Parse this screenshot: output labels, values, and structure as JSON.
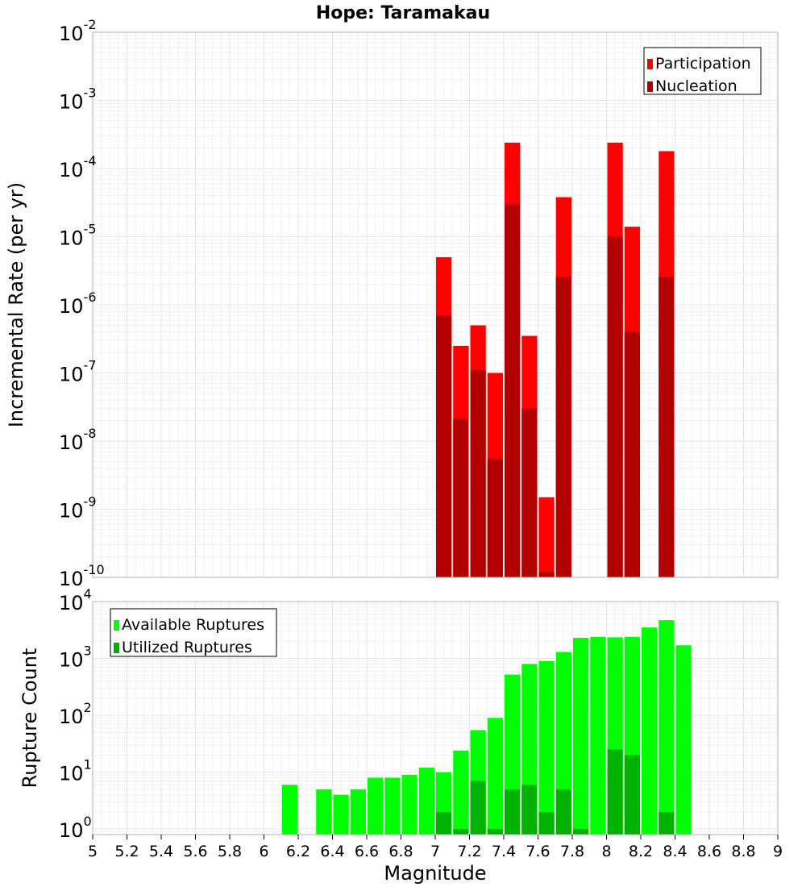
{
  "chart_data": [
    {
      "type": "bar",
      "title": "Hope: Taramakau",
      "xlabel": "",
      "ylabel": "Incremental Rate (per yr)",
      "yscale": "log",
      "ylim": [
        1e-10,
        0.01
      ],
      "xlim": [
        5,
        9
      ],
      "bin_width": 0.1,
      "grid": true,
      "legend_position": "top-right",
      "y_tick_exponents": [
        "-10",
        "-9",
        "-8",
        "-7",
        "-6",
        "-5",
        "-4",
        "-3",
        "-2"
      ],
      "colors": {
        "Participation": "#ff0000",
        "Nucleation": "#b20000"
      },
      "series": [
        {
          "name": "Participation",
          "x": [
            7.05,
            7.15,
            7.25,
            7.35,
            7.45,
            7.55,
            7.65,
            7.75,
            8.05,
            8.15,
            8.35
          ],
          "values": [
            5e-06,
            2.5e-07,
            5e-07,
            1e-07,
            0.00024,
            3.5e-07,
            1.5e-09,
            3.8e-05,
            0.00024,
            1.4e-05,
            0.00018
          ]
        },
        {
          "name": "Nucleation",
          "x": [
            7.05,
            7.15,
            7.25,
            7.35,
            7.45,
            7.55,
            7.65,
            7.75,
            8.05,
            8.15,
            8.35
          ],
          "values": [
            7e-07,
            2.1e-08,
            1.1e-07,
            5.5e-09,
            3e-05,
            3e-08,
            1.2e-10,
            2.6e-06,
            1e-05,
            4e-07,
            2.6e-06
          ]
        }
      ]
    },
    {
      "type": "bar",
      "title": "",
      "xlabel": "Magnitude",
      "ylabel": "Rupture Count",
      "yscale": "log",
      "ylim": [
        0.8,
        10000
      ],
      "xlim": [
        5,
        9
      ],
      "bin_width": 0.1,
      "grid": true,
      "legend_position": "top-left",
      "y_tick_exponents": [
        "0",
        "1",
        "2",
        "3",
        "4"
      ],
      "x_ticks": [
        "5",
        "5.2",
        "5.4",
        "5.6",
        "5.8",
        "6",
        "6.2",
        "6.4",
        "6.6",
        "6.8",
        "7",
        "7.2",
        "7.4",
        "7.6",
        "7.8",
        "8",
        "8.2",
        "8.4",
        "8.6",
        "8.8",
        "9"
      ],
      "colors": {
        "Available Ruptures": "#00ff00",
        "Utilized Ruptures": "#00b200"
      },
      "series": [
        {
          "name": "Available Ruptures",
          "x": [
            6.15,
            6.35,
            6.45,
            6.55,
            6.65,
            6.75,
            6.85,
            6.95,
            7.05,
            7.15,
            7.25,
            7.35,
            7.45,
            7.55,
            7.65,
            7.75,
            7.85,
            7.95,
            8.05,
            8.15,
            8.25,
            8.35,
            8.45
          ],
          "values": [
            6,
            5,
            4,
            5,
            8,
            8,
            9,
            12,
            10,
            24,
            55,
            90,
            520,
            800,
            900,
            1300,
            2300,
            2400,
            2350,
            2400,
            3500,
            4700,
            1700
          ]
        },
        {
          "name": "Utilized Ruptures",
          "x": [
            7.05,
            7.15,
            7.25,
            7.35,
            7.45,
            7.55,
            7.65,
            7.75,
            7.85,
            8.05,
            8.15,
            8.35
          ],
          "values": [
            2,
            1,
            7,
            1,
            5,
            6,
            2,
            5,
            1,
            25,
            20,
            2
          ]
        }
      ]
    }
  ]
}
